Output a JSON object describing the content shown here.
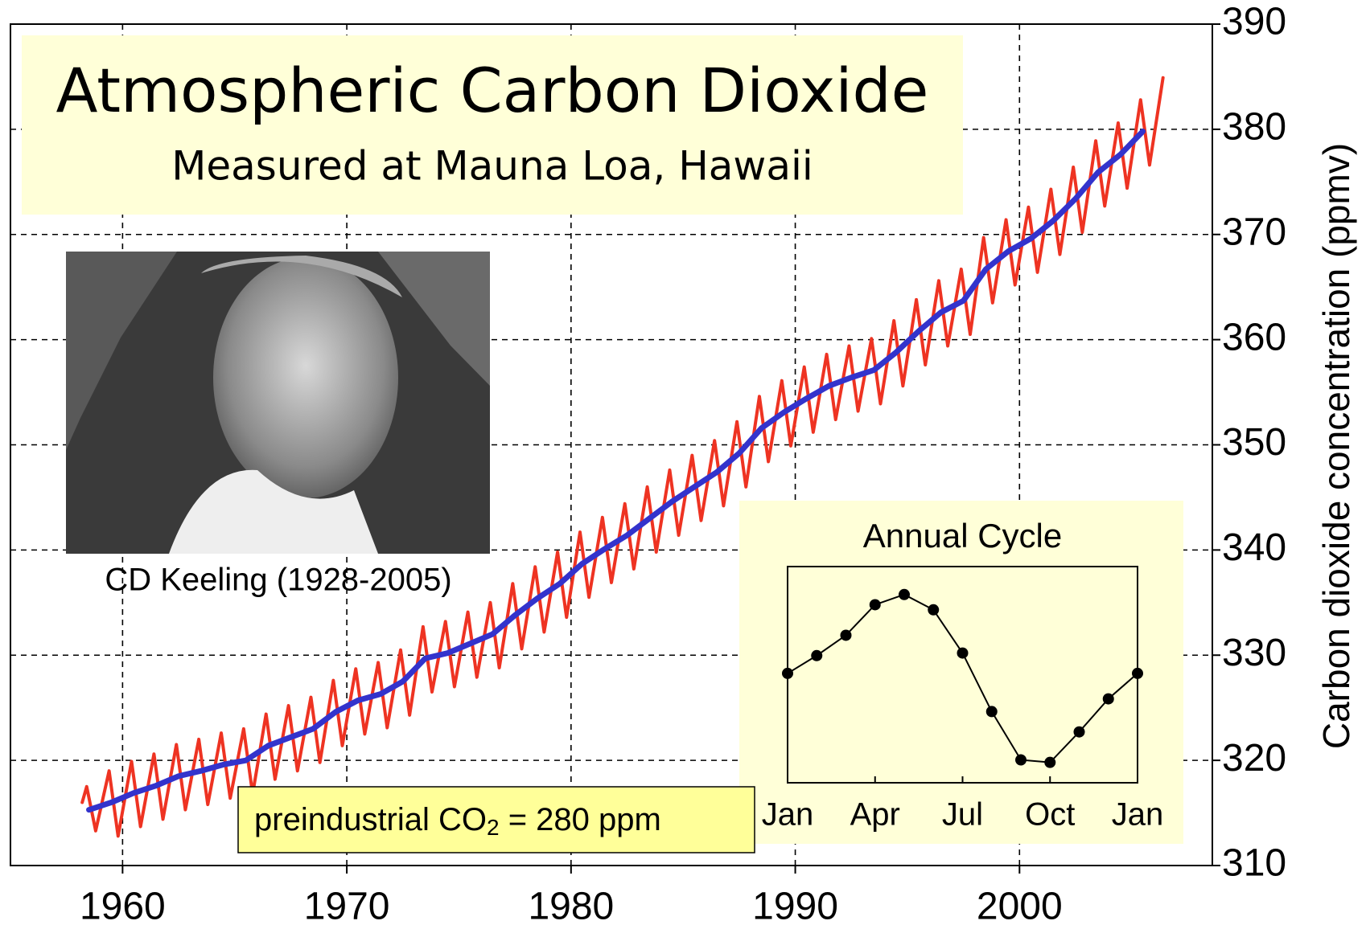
{
  "chart_data": [
    {
      "type": "line",
      "title": "Atmospheric Carbon Dioxide",
      "subtitle": "Measured at Mauna Loa, Hawaii",
      "photo_caption": "CD Keeling (1928-2005)",
      "annotation_parts": [
        "preindustrial CO",
        "2",
        " = 280 ppm"
      ],
      "y_label": "Carbon dioxide concentration (ppmv)",
      "xlim": [
        1955,
        2008.6
      ],
      "xticks": [
        1960,
        1970,
        1980,
        1990,
        2000
      ],
      "ylim": [
        310,
        390
      ],
      "yticks": [
        310,
        320,
        330,
        340,
        350,
        360,
        370,
        380,
        390
      ],
      "grid": true,
      "series": [
        {
          "color": "#ee3322",
          "x": [
            1958.2,
            1958.4,
            1958.8,
            1959.4,
            1959.8,
            1960.4,
            1960.8,
            1961.4,
            1961.8,
            1962.4,
            1962.8,
            1963.4,
            1963.8,
            1964.4,
            1964.8,
            1965.4,
            1965.8,
            1966.4,
            1966.8,
            1967.4,
            1967.8,
            1968.4,
            1968.8,
            1969.4,
            1969.8,
            1970.4,
            1970.8,
            1971.4,
            1971.8,
            1972.4,
            1972.8,
            1973.4,
            1973.8,
            1974.4,
            1974.8,
            1975.4,
            1975.8,
            1976.4,
            1976.8,
            1977.4,
            1977.8,
            1978.4,
            1978.8,
            1979.4,
            1979.8,
            1980.4,
            1980.8,
            1981.4,
            1981.8,
            1982.4,
            1982.8,
            1983.4,
            1983.8,
            1984.4,
            1984.8,
            1985.4,
            1985.8,
            1986.4,
            1986.8,
            1987.4,
            1987.8,
            1988.4,
            1988.8,
            1989.4,
            1989.8,
            1990.4,
            1990.8,
            1991.4,
            1991.8,
            1992.4,
            1992.8,
            1993.4,
            1993.8,
            1994.4,
            1994.8,
            1995.4,
            1995.8,
            1996.4,
            1996.8,
            1997.4,
            1997.8,
            1998.4,
            1998.8,
            1999.4,
            1999.8,
            2000.4,
            2000.8,
            2001.4,
            2001.8,
            2002.4,
            2002.8,
            2003.4,
            2003.8,
            2004.4,
            2004.8,
            2005.4,
            2005.8,
            2006.4
          ],
          "values": [
            316.0,
            317.5,
            313.3,
            319.0,
            312.8,
            319.9,
            313.7,
            320.6,
            314.4,
            321.5,
            315.3,
            322.0,
            315.8,
            322.6,
            316.4,
            323.0,
            316.8,
            324.4,
            318.2,
            325.2,
            319.0,
            326.0,
            319.8,
            327.6,
            321.4,
            328.7,
            322.5,
            329.3,
            323.1,
            330.5,
            324.3,
            332.7,
            326.5,
            333.2,
            327.0,
            334.1,
            327.9,
            335.0,
            328.8,
            336.8,
            330.6,
            338.4,
            332.2,
            339.8,
            333.6,
            341.7,
            335.5,
            343.1,
            336.9,
            344.4,
            338.2,
            346.0,
            339.8,
            347.6,
            341.4,
            349.0,
            342.8,
            350.4,
            344.2,
            352.2,
            346.0,
            354.6,
            348.4,
            356.1,
            349.9,
            357.4,
            351.2,
            358.6,
            352.4,
            359.4,
            353.2,
            360.1,
            353.9,
            361.8,
            355.6,
            363.8,
            357.6,
            365.6,
            359.4,
            366.7,
            360.5,
            369.7,
            363.5,
            371.4,
            365.2,
            372.6,
            366.4,
            374.3,
            368.1,
            376.4,
            370.2,
            378.9,
            372.7,
            380.6,
            374.4,
            382.8,
            376.6,
            384.9
          ]
        },
        {
          "color": "#3333cc",
          "x": [
            1958.5,
            1959.5,
            1960.5,
            1961.5,
            1962.5,
            1963.5,
            1964.5,
            1965.5,
            1966.5,
            1967.5,
            1968.5,
            1969.5,
            1970.5,
            1971.5,
            1972.5,
            1973.5,
            1974.5,
            1975.5,
            1976.5,
            1977.5,
            1978.5,
            1979.5,
            1980.5,
            1981.5,
            1982.5,
            1983.5,
            1984.5,
            1985.5,
            1986.5,
            1987.5,
            1988.5,
            1989.5,
            1990.5,
            1991.5,
            1992.5,
            1993.5,
            1994.5,
            1995.5,
            1996.5,
            1997.5,
            1998.5,
            1999.5,
            2000.5,
            2001.5,
            2002.5,
            2003.5,
            2004.5,
            2005.5
          ],
          "values": [
            315.3,
            316.0,
            316.9,
            317.6,
            318.5,
            319.0,
            319.6,
            320.0,
            321.4,
            322.2,
            323.0,
            324.6,
            325.7,
            326.3,
            327.5,
            329.7,
            330.2,
            331.1,
            332.0,
            333.8,
            335.4,
            336.8,
            338.7,
            340.1,
            341.4,
            343.0,
            344.6,
            346.0,
            347.4,
            349.2,
            351.6,
            353.1,
            354.4,
            355.6,
            356.4,
            357.1,
            358.8,
            360.8,
            362.6,
            363.7,
            366.7,
            368.4,
            369.6,
            371.3,
            373.4,
            375.9,
            377.6,
            379.8
          ]
        }
      ]
    },
    {
      "type": "line",
      "title": "Annual Cycle",
      "markers": true,
      "color": "#000000",
      "xlim": [
        0,
        12
      ],
      "xticks": [
        {
          "value": 0,
          "label": "Jan"
        },
        {
          "value": 3,
          "label": "Apr"
        },
        {
          "value": 6,
          "label": "Jul"
        },
        {
          "value": 9,
          "label": "Oct"
        },
        {
          "value": 12,
          "label": "Jan"
        }
      ],
      "ylim": [
        -4.1,
        4.4
      ],
      "x": [
        0,
        1,
        2,
        3,
        4,
        5,
        6,
        7,
        8,
        9,
        10,
        11,
        12
      ],
      "values": [
        0.2,
        0.9,
        1.7,
        2.9,
        3.3,
        2.7,
        1.0,
        -1.3,
        -3.2,
        -3.3,
        -2.1,
        -0.8,
        0.2
      ]
    }
  ]
}
